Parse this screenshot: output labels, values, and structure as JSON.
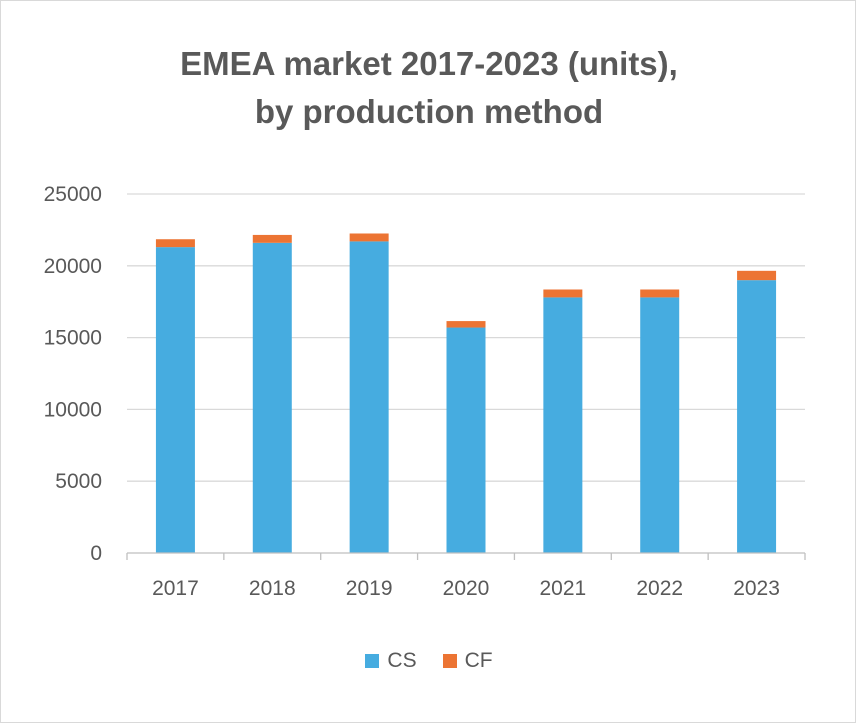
{
  "chart_data": {
    "type": "bar",
    "stacked": true,
    "title_lines": [
      "EMEA market 2017-2023 (units),",
      "by production method"
    ],
    "categories": [
      "2017",
      "2018",
      "2019",
      "2020",
      "2021",
      "2022",
      "2023"
    ],
    "series": [
      {
        "name": "CS",
        "color": "#46ACE0",
        "values": [
          21300,
          21600,
          21700,
          15700,
          17800,
          17800,
          19000
        ]
      },
      {
        "name": "CF",
        "color": "#EC7433",
        "values": [
          550,
          550,
          550,
          450,
          550,
          550,
          650
        ]
      }
    ],
    "yticks": [
      "0",
      "5000",
      "10000",
      "15000",
      "20000",
      "25000"
    ],
    "ylim": [
      0,
      25000
    ],
    "grid": true,
    "legend_position": "bottom"
  }
}
